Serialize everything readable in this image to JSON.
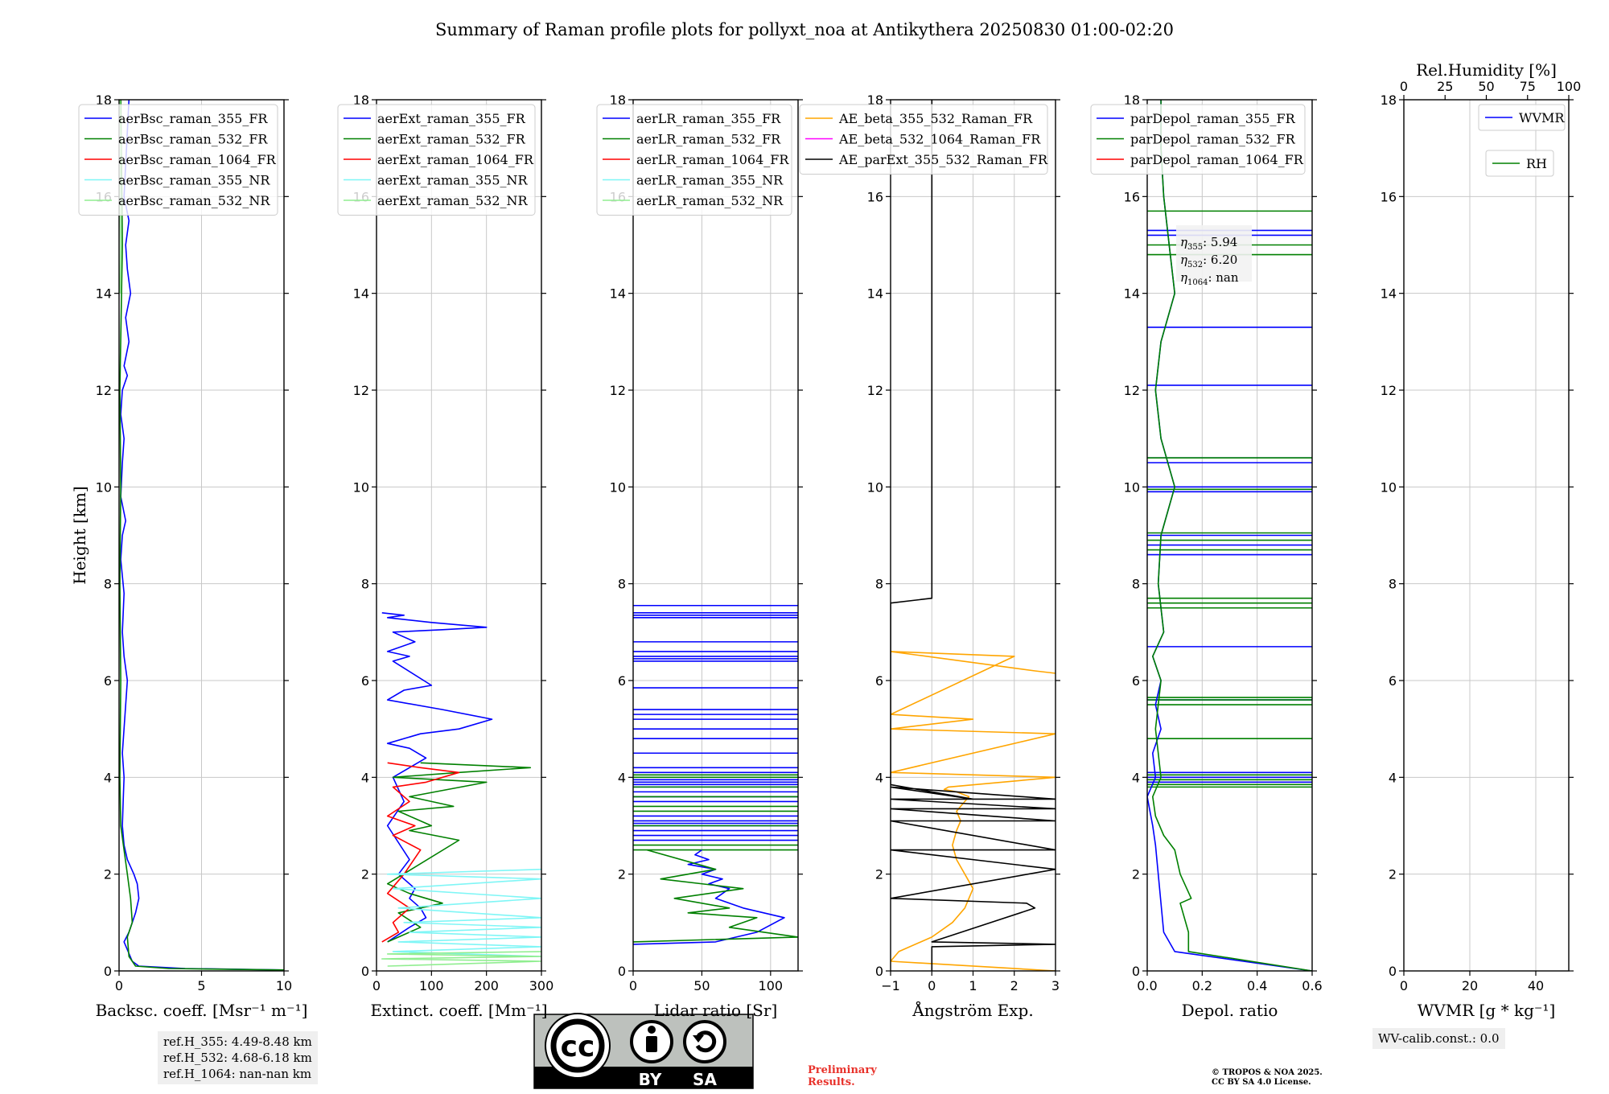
{
  "title": "Summary of Raman profile plots for pollyxt_noa at Antikythera 20250830 01:00-02:20",
  "colors": {
    "blue": "#0000ff",
    "green": "#008000",
    "red": "#ff0000",
    "cyan": "#7ff6f6",
    "lightgreen": "#90ee90",
    "orange": "#ffa500",
    "magenta": "#ff00ff",
    "black": "#000000"
  },
  "chart_data": [
    {
      "type": "line",
      "id": "bsc",
      "ylabel": "Height [km]",
      "xlabel": "Backsc. coeff. [Msr⁻¹ m⁻¹]",
      "xlim": [
        0,
        10
      ],
      "ylim": [
        0,
        18
      ],
      "xticks": [
        "0",
        "5",
        "10"
      ],
      "yticks": [
        "0",
        "2",
        "4",
        "6",
        "8",
        "10",
        "12",
        "14",
        "16",
        "18"
      ],
      "legend": {
        "position": "top-left",
        "entries": [
          "aerBsc_raman_355_FR",
          "aerBsc_raman_532_FR",
          "aerBsc_raman_1064_FR",
          "aerBsc_raman_355_NR",
          "aerBsc_raman_532_NR"
        ]
      },
      "series": [
        {
          "name": "aerBsc_raman_355_FR",
          "color": "blue",
          "x": [
            10,
            4,
            1.2,
            0.8,
            0.3,
            0.6,
            1.0,
            1.2,
            1.1,
            0.9,
            0.5,
            0.3,
            0.2,
            0.25,
            0.3,
            0.2,
            0.5,
            0.3,
            0.2,
            0.3,
            0.1,
            0.2,
            0.4,
            0.1,
            0.2,
            0.3,
            0.1,
            0.2,
            0.5,
            0.3,
            0.6,
            0.4,
            0.7,
            0.5,
            0.4,
            0.6,
            0.3,
            0.6
          ],
          "y": [
            0.02,
            0.05,
            0.1,
            0.2,
            0.6,
            0.8,
            1.2,
            1.5,
            1.8,
            2.0,
            2.3,
            2.6,
            3.0,
            3.5,
            4.0,
            4.5,
            6.0,
            6.5,
            7.0,
            7.8,
            8.5,
            9.0,
            9.3,
            9.8,
            10.5,
            11.0,
            11.5,
            12.0,
            12.3,
            12.5,
            13.0,
            13.5,
            14.0,
            14.5,
            15.0,
            15.5,
            16.0,
            18.0
          ]
        },
        {
          "name": "aerBsc_raman_532_FR",
          "color": "green",
          "x": [
            10,
            3,
            1.0,
            0.6,
            0.5,
            0.8,
            0.7,
            0.5,
            0.3,
            0.1,
            0.05,
            0.1,
            0.05,
            0.1,
            0.05,
            0.2,
            0.1
          ],
          "y": [
            0.02,
            0.05,
            0.1,
            0.3,
            0.7,
            1.0,
            1.5,
            2.0,
            2.5,
            3.0,
            4.0,
            6.0,
            8.0,
            10.0,
            12.0,
            15.0,
            18.0
          ]
        },
        {
          "name": "aerBsc_raman_532_NR",
          "color": "lightgreen",
          "x": [
            0.05,
            0.1,
            0.05,
            0.1,
            0.05
          ],
          "y": [
            14.0,
            15.0,
            16.0,
            17.0,
            18.0
          ]
        }
      ]
    },
    {
      "type": "line",
      "id": "ext",
      "xlabel": "Extinct. coeff. [Mm⁻¹]",
      "xlim": [
        0,
        300
      ],
      "ylim": [
        0,
        18
      ],
      "xticks": [
        "0",
        "100",
        "200",
        "300"
      ],
      "yticks": [
        "0",
        "2",
        "4",
        "6",
        "8",
        "10",
        "12",
        "14",
        "16",
        "18"
      ],
      "legend": {
        "position": "top-left",
        "entries": [
          "aerExt_raman_355_FR",
          "aerExt_raman_532_FR",
          "aerExt_raman_1064_FR",
          "aerExt_raman_355_NR",
          "aerExt_raman_532_NR"
        ]
      },
      "series": [
        {
          "name": "aerExt_raman_355_FR",
          "color": "blue",
          "x": [
            20,
            60,
            90,
            80,
            60,
            70,
            40,
            60,
            20,
            50,
            30,
            60,
            90,
            60,
            20,
            80,
            150,
            210,
            120,
            20,
            50,
            100,
            30,
            60,
            20,
            70,
            30,
            120,
            200,
            100,
            20,
            50,
            10
          ],
          "y": [
            0.6,
            0.9,
            1.1,
            1.3,
            1.5,
            1.7,
            2.0,
            2.3,
            3.0,
            3.5,
            4.0,
            4.2,
            4.4,
            4.6,
            4.7,
            4.9,
            5.0,
            5.2,
            5.4,
            5.6,
            5.8,
            5.9,
            6.4,
            6.5,
            6.6,
            6.8,
            7.0,
            7.05,
            7.1,
            7.2,
            7.3,
            7.35,
            7.4
          ]
        },
        {
          "name": "aerExt_raman_532_FR",
          "color": "green",
          "x": [
            20,
            80,
            40,
            120,
            60,
            20,
            150,
            60,
            100,
            40,
            140,
            60,
            200,
            30,
            150,
            280,
            80
          ],
          "y": [
            0.6,
            0.9,
            1.2,
            1.4,
            1.6,
            1.8,
            2.7,
            2.9,
            3.0,
            3.3,
            3.4,
            3.6,
            3.9,
            4.0,
            4.1,
            4.2,
            4.3
          ]
        },
        {
          "name": "aerExt_raman_1064_FR",
          "color": "red",
          "x": [
            10,
            40,
            30,
            60,
            20,
            50,
            80,
            30,
            70,
            20,
            60,
            30,
            90,
            150,
            80,
            20
          ],
          "y": [
            0.6,
            0.8,
            1.0,
            1.3,
            1.6,
            2.0,
            2.5,
            2.8,
            3.0,
            3.2,
            3.5,
            3.8,
            3.9,
            4.1,
            4.2,
            4.3
          ]
        },
        {
          "name": "aerExt_raman_355_NR",
          "color": "cyan",
          "x": [
            300,
            20,
            300,
            30,
            300,
            40,
            300,
            50,
            300,
            60,
            300,
            40,
            300,
            30,
            300
          ],
          "y": [
            2.1,
            2.0,
            1.9,
            1.7,
            1.5,
            1.3,
            1.1,
            1.0,
            0.9,
            0.8,
            0.7,
            0.6,
            0.5,
            0.4,
            0.3
          ]
        },
        {
          "name": "aerExt_raman_532_NR",
          "color": "lightgreen",
          "x": [
            300,
            20,
            300,
            10,
            300,
            20
          ],
          "y": [
            0.4,
            0.35,
            0.3,
            0.25,
            0.2,
            0.1
          ]
        }
      ]
    },
    {
      "type": "line",
      "id": "lr",
      "xlabel": "Lidar ratio [Sr]",
      "xlim": [
        0,
        120
      ],
      "ylim": [
        0,
        18
      ],
      "xticks": [
        "0",
        "50",
        "100"
      ],
      "yticks": [
        "0",
        "2",
        "4",
        "6",
        "8",
        "10",
        "12",
        "14",
        "16",
        "18"
      ],
      "legend": {
        "position": "top-left",
        "entries": [
          "aerLR_raman_355_FR",
          "aerLR_raman_532_FR",
          "aerLR_raman_1064_FR",
          "aerLR_raman_355_NR",
          "aerLR_raman_532_NR"
        ]
      },
      "hlines": [
        {
          "color": "blue",
          "y": [
            2.7,
            2.8,
            2.9,
            3.0,
            3.05,
            3.1,
            3.2,
            3.5,
            3.6,
            3.7,
            3.8,
            3.85,
            3.9,
            3.95,
            4.1,
            4.2,
            4.5,
            4.8,
            5.0,
            5.2,
            5.3,
            5.4,
            5.85,
            6.4,
            6.45,
            6.5,
            6.6,
            6.8,
            7.3,
            7.35,
            7.4,
            7.55
          ]
        },
        {
          "color": "green",
          "y": [
            2.5,
            2.6,
            3.0,
            3.3,
            3.4,
            3.6,
            3.8,
            4.0,
            4.05
          ]
        }
      ],
      "series": [
        {
          "name": "aerLR_raman_355_FR",
          "color": "blue",
          "x": [
            0,
            60,
            90,
            110,
            80,
            60,
            70,
            55,
            65,
            50,
            60,
            40,
            55,
            45,
            50
          ],
          "y": [
            0.55,
            0.6,
            0.8,
            1.1,
            1.3,
            1.5,
            1.7,
            1.8,
            1.9,
            2.0,
            2.1,
            2.2,
            2.3,
            2.4,
            2.5
          ]
        },
        {
          "name": "aerLR_raman_532_FR",
          "color": "green",
          "x": [
            0,
            120,
            70,
            90,
            40,
            70,
            30,
            80,
            20,
            60,
            10
          ],
          "y": [
            0.6,
            0.7,
            0.9,
            1.1,
            1.2,
            1.3,
            1.5,
            1.7,
            1.9,
            2.1,
            2.5
          ]
        }
      ]
    },
    {
      "type": "line",
      "id": "ae",
      "xlabel": "Ångström Exp.",
      "xlim": [
        -1,
        3
      ],
      "ylim": [
        0,
        18
      ],
      "xticks": [
        "−1",
        "0",
        "1",
        "2",
        "3"
      ],
      "yticks": [
        "0",
        "2",
        "4",
        "6",
        "8",
        "10",
        "12",
        "14",
        "16",
        "18"
      ],
      "legend": {
        "position": "top-left",
        "entries": [
          "AE_beta_355_532_Raman_FR",
          "AE_beta_532_1064_Raman_FR",
          "AE_parExt_355_532_Raman_FR"
        ]
      },
      "series": [
        {
          "name": "AE_beta_355_532_Raman_FR",
          "color": "orange",
          "x": [
            3,
            -1,
            -0.8,
            0,
            0.5,
            0.8,
            1.0,
            0.8,
            0.6,
            0.5,
            0.6,
            0.7,
            0.6,
            0.7,
            0.9,
            0.6,
            0.3,
            0.4,
            3,
            -1,
            3,
            -1,
            1.0,
            -1,
            2.0,
            -1,
            2.5,
            3
          ],
          "y": [
            0.0,
            0.2,
            0.4,
            0.7,
            1.0,
            1.3,
            1.7,
            2.0,
            2.3,
            2.6,
            2.9,
            3.1,
            3.3,
            3.4,
            3.6,
            3.7,
            3.75,
            3.8,
            4.0,
            4.1,
            4.9,
            5.0,
            5.2,
            5.3,
            6.5,
            6.6,
            6.2,
            6.15
          ]
        },
        {
          "name": "AE_parExt_355_532_Raman_FR",
          "color": "black",
          "x": [
            0,
            0,
            3,
            0,
            2.5,
            2.3,
            -1,
            3,
            -1,
            3,
            -1,
            3,
            -1,
            3,
            -1,
            3,
            -1,
            1.0,
            -1,
            -1,
            0,
            0,
            0
          ],
          "y": [
            0.0,
            0.5,
            0.55,
            0.6,
            1.3,
            1.4,
            1.5,
            2.1,
            2.5,
            2.5,
            3.1,
            3.1,
            3.35,
            3.35,
            3.55,
            3.55,
            3.8,
            3.55,
            3.85,
            7.6,
            7.7,
            10.0,
            18.0
          ]
        }
      ]
    },
    {
      "type": "line",
      "id": "depol",
      "xlabel": "Depol. ratio",
      "xlim": [
        0.0,
        0.6
      ],
      "ylim": [
        0,
        18
      ],
      "xticks": [
        "0.0",
        "0.2",
        "0.4",
        "0.6"
      ],
      "yticks": [
        "0",
        "2",
        "4",
        "6",
        "8",
        "10",
        "12",
        "14",
        "16",
        "18"
      ],
      "legend": {
        "position": "top-left",
        "entries": [
          "parDepol_raman_355_FR",
          "parDepol_raman_532_FR",
          "parDepol_raman_1064_FR"
        ]
      },
      "annotations": [
        {
          "sym": "η",
          "sub": "355",
          "val": ": 5.94"
        },
        {
          "sym": "η",
          "sub": "532",
          "val": ": 6.20"
        },
        {
          "sym": "η",
          "sub": "1064",
          "val": ": nan"
        }
      ],
      "series": [
        {
          "name": "parDepol_raman_355_FR",
          "color": "blue",
          "x": [
            0.6,
            0.1,
            0.06,
            0.05,
            0.04,
            0.03,
            0.02,
            0.0,
            0.03,
            0.02,
            0.05,
            0.03,
            0.05,
            0.02,
            0.06,
            0.04,
            0.05,
            0.1,
            0.05,
            0.03,
            0.05,
            0.1,
            0.08,
            0.06,
            0.05,
            0.05
          ],
          "y": [
            0.0,
            0.4,
            0.8,
            1.4,
            2.0,
            2.6,
            3.0,
            3.6,
            4.0,
            4.5,
            5.0,
            5.5,
            6.0,
            6.5,
            7.0,
            8.0,
            9.0,
            10.0,
            11.0,
            12.0,
            13.0,
            14.0,
            15.0,
            16.0,
            17.0,
            18.0
          ]
        },
        {
          "name": "parDepol_raman_532_FR",
          "color": "green",
          "x": [
            0.6,
            0.15,
            0.15,
            0.12,
            0.16,
            0.12,
            0.1,
            0.06,
            0.03,
            0.02,
            0.05,
            0.03,
            0.05,
            0.02,
            0.06,
            0.04,
            0.05,
            0.1,
            0.05,
            0.03,
            0.05,
            0.1,
            0.08,
            0.06,
            0.05,
            0.05
          ],
          "y": [
            0.0,
            0.4,
            0.8,
            1.4,
            1.5,
            2.0,
            2.5,
            2.8,
            3.2,
            3.6,
            4.0,
            5.0,
            6.0,
            6.5,
            7.0,
            8.0,
            9.0,
            10.0,
            11.0,
            12.0,
            13.0,
            14.0,
            15.0,
            16.0,
            17.0,
            18.0
          ]
        }
      ],
      "hlines": [
        {
          "color": "blue",
          "y": [
            3.9,
            4.0,
            4.1,
            5.6,
            6.7,
            8.6,
            8.8,
            9.0,
            9.9,
            10.0,
            10.5,
            10.6,
            12.1,
            13.3,
            15.2,
            15.3
          ]
        },
        {
          "color": "green",
          "y": [
            3.8,
            3.85,
            3.95,
            4.05,
            4.8,
            5.5,
            5.6,
            5.65,
            7.5,
            7.6,
            7.7,
            8.7,
            8.9,
            9.05,
            9.95,
            10.6,
            14.8,
            15.0,
            15.7
          ]
        }
      ]
    },
    {
      "type": "line",
      "id": "wv",
      "xlabel": "WVMR [g * kg⁻¹]",
      "top_xlabel": "Rel.Humidity [%]",
      "xlim": [
        0,
        50
      ],
      "ylim": [
        0,
        18
      ],
      "xticks": [
        "0",
        "20",
        "40"
      ],
      "top_xticks": [
        "0",
        "25",
        "50",
        "75",
        "100"
      ],
      "yticks": [
        "0",
        "2",
        "4",
        "6",
        "8",
        "10",
        "12",
        "14",
        "16",
        "18"
      ],
      "legend": {
        "position": "top-right",
        "entries": [
          "WVMR",
          "RH"
        ]
      },
      "series": []
    }
  ],
  "notes": {
    "refh": [
      "ref.H_355: 4.49-8.48 km",
      "ref.H_532: 4.68-6.18 km",
      "ref.H_1064: nan-nan km"
    ],
    "wvcalib": "WV-calib.const.: 0.0",
    "prelim": [
      "Preliminary",
      "Results."
    ],
    "copyright": [
      "© TROPOS & NOA 2025.",
      "CC BY SA 4.0 License."
    ]
  },
  "license_badge": {
    "cc": "cc",
    "by": "BY",
    "sa": "SA"
  }
}
